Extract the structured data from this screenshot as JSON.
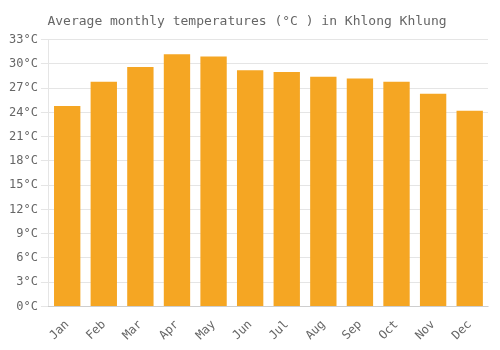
{
  "chart_data": {
    "type": "bar",
    "title": "Average monthly temperatures (°C ) in Khlong Khlung",
    "categories": [
      "Jan",
      "Feb",
      "Mar",
      "Apr",
      "May",
      "Jun",
      "Jul",
      "Aug",
      "Sep",
      "Oct",
      "Nov",
      "Dec"
    ],
    "values": [
      24.8,
      27.8,
      29.6,
      31.2,
      30.9,
      29.2,
      29.0,
      28.4,
      28.2,
      27.8,
      26.3,
      24.2
    ],
    "color": "#F5A623",
    "ylim": [
      0,
      33
    ],
    "yticks": [
      {
        "value": 0,
        "label": "0°C"
      },
      {
        "value": 3,
        "label": "3°C"
      },
      {
        "value": 6,
        "label": "6°C"
      },
      {
        "value": 9,
        "label": "9°C"
      },
      {
        "value": 12,
        "label": "12°C"
      },
      {
        "value": 15,
        "label": "15°C"
      },
      {
        "value": 18,
        "label": "18°C"
      },
      {
        "value": 21,
        "label": "21°C"
      },
      {
        "value": 24,
        "label": "24°C"
      },
      {
        "value": 27,
        "label": "27°C"
      },
      {
        "value": 30,
        "label": "30°C"
      },
      {
        "value": 33,
        "label": "33°C"
      }
    ],
    "grid": true
  }
}
